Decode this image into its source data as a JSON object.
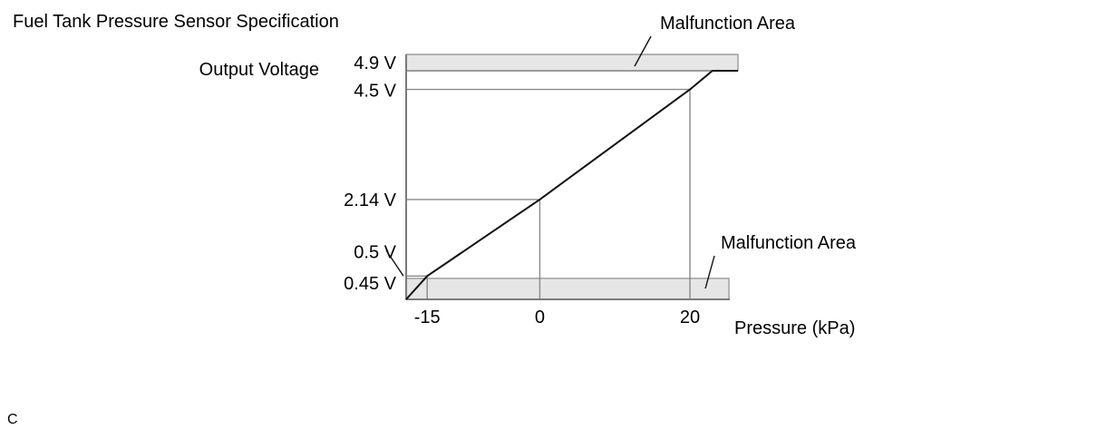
{
  "chart_data": {
    "type": "line",
    "title": "Fuel Tank Pressure Sensor Specification",
    "ylabel": "Output Voltage",
    "xlabel": "Pressure (kPa)",
    "xlim": [
      -17.8,
      26.4
    ],
    "ylim": [
      0.0,
      5.25
    ],
    "x_ticks": [
      {
        "value": -15,
        "label": "-15"
      },
      {
        "value": 0,
        "label": "0"
      },
      {
        "value": 20,
        "label": "20"
      }
    ],
    "y_ticks": [
      {
        "value": 4.9,
        "label": "4.9 V"
      },
      {
        "value": 4.5,
        "label": "4.5 V"
      },
      {
        "value": 2.14,
        "label": "2.14 V"
      },
      {
        "value": 0.5,
        "label": "0.5 V"
      },
      {
        "value": 0.45,
        "label": "0.45 V"
      }
    ],
    "series": [
      {
        "points": [
          [
            -17.8,
            0.0
          ],
          [
            -15,
            0.5
          ],
          [
            0,
            2.14
          ],
          [
            20,
            4.5
          ],
          [
            23,
            4.9
          ],
          [
            26.4,
            4.9
          ]
        ]
      }
    ],
    "reference_lines": [
      {
        "x": -15,
        "y": 0.5
      },
      {
        "x": 0,
        "y": 2.14
      },
      {
        "x": 20,
        "y": 4.5
      }
    ],
    "regions": [
      {
        "label": "Malfunction Area",
        "y_from": 4.9,
        "y_to": 5.25,
        "x_to": 26.4
      },
      {
        "label": "Malfunction Area",
        "y_from": 0.0,
        "y_to": 0.45,
        "x_to": 25.2
      }
    ],
    "grid": false,
    "legend": "none"
  },
  "corner_mark": "C"
}
